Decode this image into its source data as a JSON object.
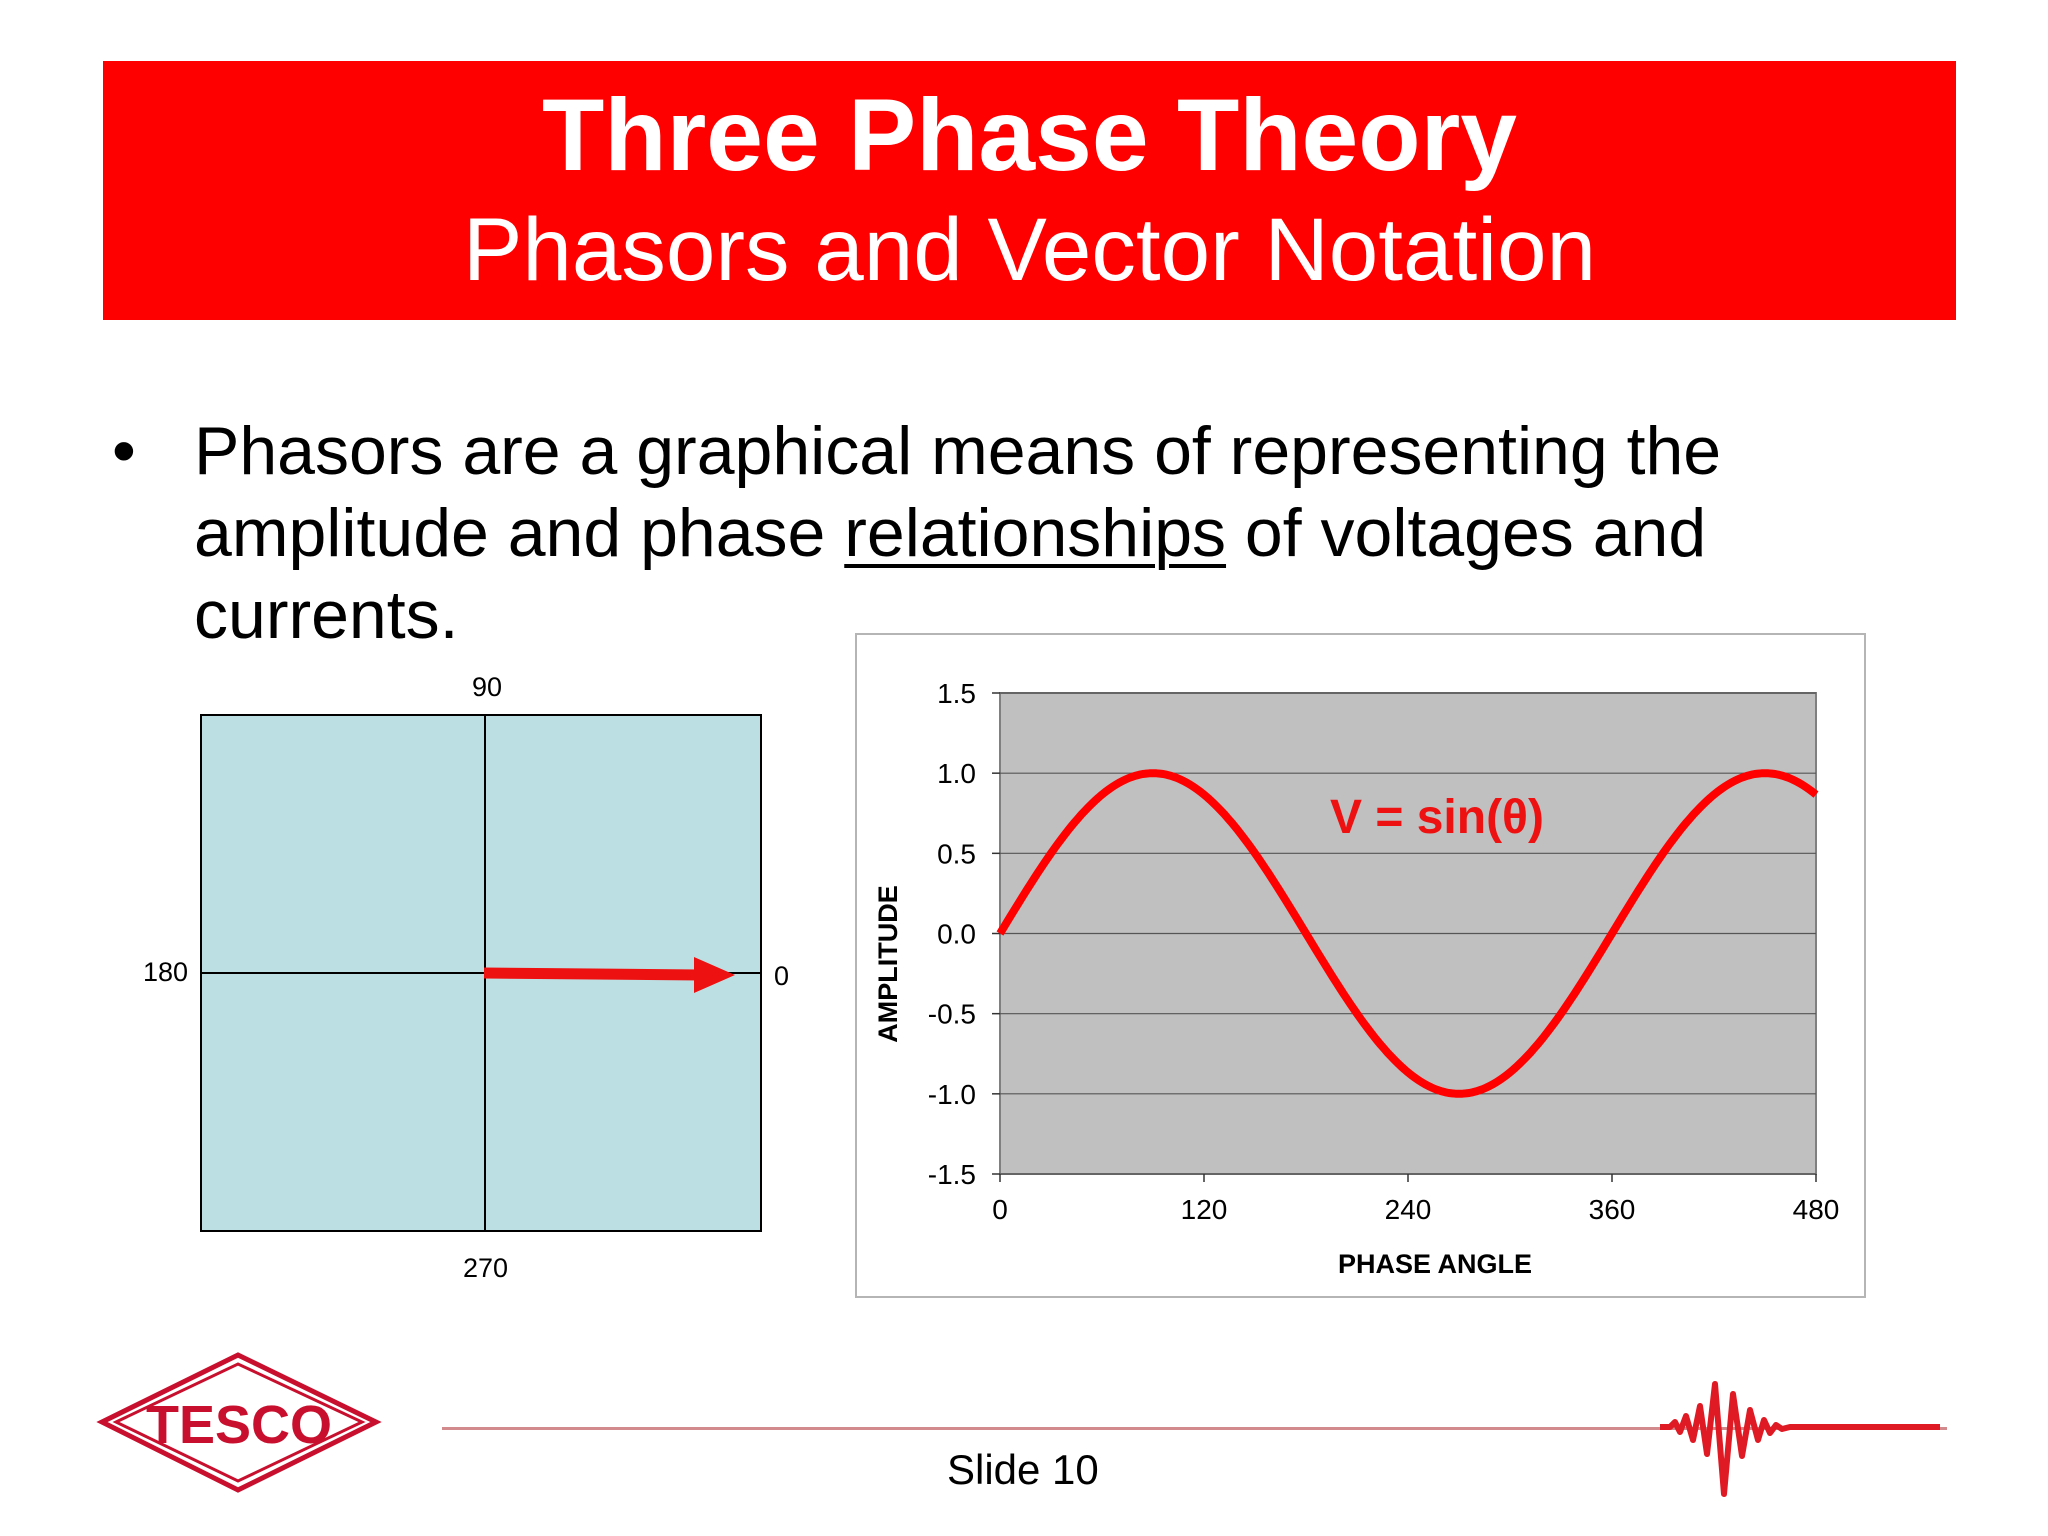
{
  "header": {
    "title": "Three Phase Theory",
    "subtitle": "Phasors and Vector Notation",
    "background_color": "#ff0000"
  },
  "bullet": {
    "text_before": "Phasors are a graphical means of representing the amplitude and phase ",
    "underlined": "relationships",
    "text_after": " of voltages and currents."
  },
  "phasor_diagram": {
    "labels": {
      "top": "90",
      "left": "180",
      "right": "0",
      "bottom": "270"
    },
    "vector_angle_deg": 0,
    "vector_color": "#ee1111",
    "background_color": "#bcdfe3"
  },
  "chart_data": {
    "type": "line",
    "function": "V = sin(θ)",
    "annotation": "V = sin(θ)",
    "xlabel": "PHASE ANGLE",
    "ylabel": "AMPLITUDE",
    "xlim": [
      0,
      480
    ],
    "ylim": [
      -1.5,
      1.5
    ],
    "xticks": [
      "0",
      "120",
      "240",
      "360",
      "480"
    ],
    "yticks": [
      "1.5",
      "1.0",
      "0.5",
      "0.0",
      "-0.5",
      "-1.0",
      "-1.5"
    ],
    "grid": true,
    "series": [
      {
        "color": "#ff0000",
        "x": [
          0,
          30,
          60,
          90,
          120,
          150,
          180,
          210,
          240,
          270,
          300,
          330,
          360,
          390,
          420,
          450,
          480
        ],
        "y": [
          0.0,
          0.5,
          0.866,
          1.0,
          0.866,
          0.5,
          0.0,
          -0.5,
          -0.866,
          -1.0,
          -0.866,
          -0.5,
          0.0,
          0.5,
          0.866,
          1.0,
          0.866
        ]
      }
    ],
    "plot_background": "#c0c0c0"
  },
  "footer": {
    "logo_text": "TESCO",
    "slide_label": "Slide 10"
  }
}
